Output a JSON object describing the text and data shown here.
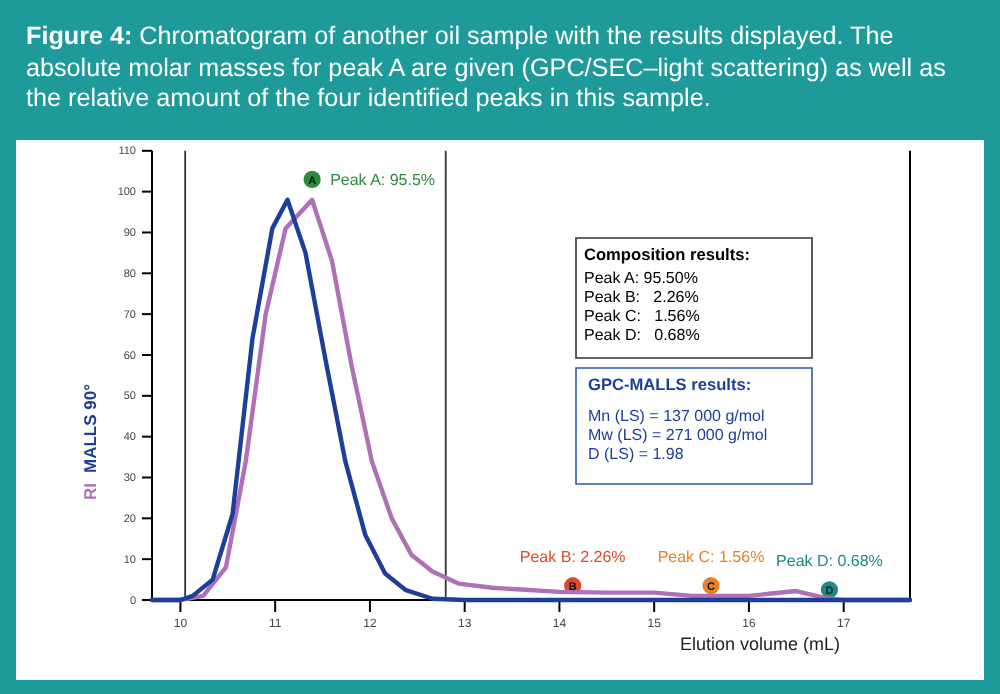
{
  "chart_data": {
    "type": "line",
    "title": "Figure 4: Chromatogram of another oil sample with the results displayed. The absolute molar masses for peak A are given (GPC/SEC–light scattering) as well as the relative amount of the four identified peaks in this sample.",
    "xlabel": "Elution volume (mL)",
    "xlim": [
      9.7,
      17.7
    ],
    "xticks": [
      10,
      11,
      12,
      13,
      14,
      15,
      16,
      17
    ],
    "ylim": [
      0,
      110
    ],
    "yticks": [
      0,
      10,
      20,
      30,
      40,
      50,
      60,
      70,
      80,
      90,
      100,
      110
    ],
    "legend": "left",
    "grid": false,
    "series": [
      {
        "name": "RI",
        "color": "#b070b8",
        "x": [
          9.7,
          10.0,
          10.24,
          10.48,
          10.69,
          10.9,
          11.11,
          11.39,
          11.6,
          11.81,
          12.02,
          12.23,
          12.44,
          12.66,
          12.94,
          13.29,
          13.64,
          14.0,
          14.5,
          15.0,
          15.4,
          16.0,
          16.5,
          16.8,
          17.0,
          17.7
        ],
        "values": [
          0,
          0,
          1,
          8,
          34,
          70,
          91,
          98,
          83,
          57,
          34,
          20,
          11,
          7,
          4,
          3,
          2.5,
          2,
          1.8,
          1.8,
          1,
          1,
          2.2,
          0.5,
          0,
          0
        ]
      },
      {
        "name": "MALLS 90°",
        "color": "#1d3f9a",
        "x": [
          9.7,
          10.0,
          10.13,
          10.34,
          10.55,
          10.76,
          10.97,
          11.13,
          11.32,
          11.53,
          11.74,
          11.95,
          12.16,
          12.38,
          12.66,
          13.0,
          17.7
        ],
        "values": [
          0,
          0,
          1,
          5,
          21,
          64,
          91,
          98,
          85,
          59,
          34,
          16,
          6.5,
          2.4,
          0.3,
          0,
          0
        ]
      },
      {
        "type": "scatter",
        "marker": "circle",
        "x": [
          11.39,
          14.14,
          15.6,
          16.85
        ],
        "values": [
          103,
          3.5,
          3.5,
          2.5
        ],
        "colors": [
          "#2e8b3e",
          "#e04a2a",
          "#e8822a",
          "#1a8a8a"
        ]
      }
    ],
    "ref_lines": [
      {
        "axis": "x",
        "value": 10.05,
        "color": "#333333"
      },
      {
        "axis": "x",
        "value": 12.8,
        "color": "#333333"
      }
    ],
    "annotations": [
      {
        "text": "A",
        "x": 11.39,
        "y": 103
      },
      {
        "text": "B",
        "x": 14.14,
        "y": 3.5
      },
      {
        "text": "C",
        "x": 15.6,
        "y": 3.5
      },
      {
        "text": "D",
        "x": 16.85,
        "y": 2.5
      },
      {
        "text": "Peak A: 95.5%",
        "x": 11.39,
        "y": 103
      },
      {
        "text": "Peak B: 2.26%",
        "x": 14.14,
        "y": 3.5
      },
      {
        "text": "Peak C: 1.56%",
        "x": 15.6,
        "y": 3.5
      },
      {
        "text": "Peak D: 0.68%",
        "x": 16.85,
        "y": 2.5
      },
      "Composition results:",
      "Peak A: 95.50%",
      "Peak B:   2.26%",
      "Peak C:   1.56%",
      "Peak D:   0.68%",
      "GPC-MALLS results:",
      "Mn (LS) = 137 000 g/mol",
      "Mw (LS) = 271 000 g/mol",
      "D (LS) = 1.98"
    ]
  }
}
